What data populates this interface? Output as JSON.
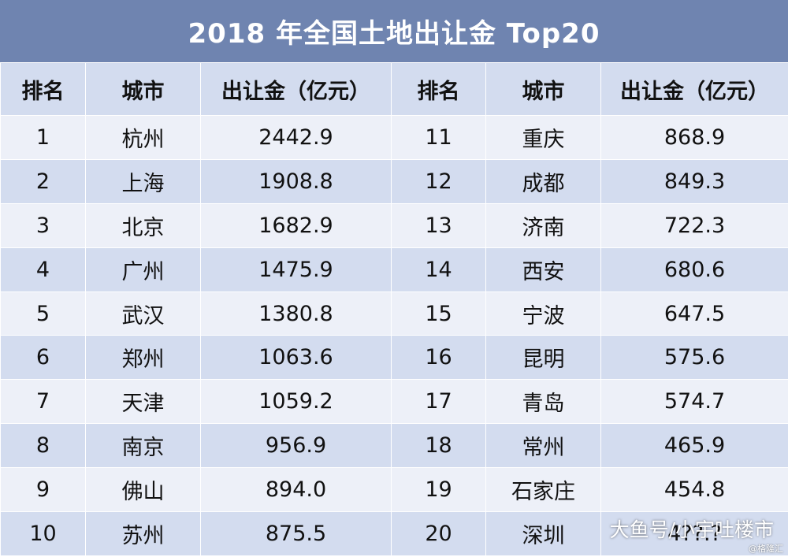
{
  "title": "2018 年全国土地出让金 Top20",
  "headers": [
    "排名",
    "城市",
    "出让金（亿元）",
    "排名",
    "城市",
    "出让金（亿元）"
  ],
  "rows": [
    [
      "1",
      "杭州",
      "2442.9",
      "11",
      "重庆",
      "868.9"
    ],
    [
      "2",
      "上海",
      "1908.8",
      "12",
      "成都",
      "849.3"
    ],
    [
      "3",
      "北京",
      "1682.9",
      "13",
      "济南",
      "722.3"
    ],
    [
      "4",
      "广州",
      "1475.9",
      "14",
      "西安",
      "680.6"
    ],
    [
      "5",
      "武汉",
      "1380.8",
      "15",
      "宁波",
      "647.5"
    ],
    [
      "6",
      "郑州",
      "1063.6",
      "16",
      "昆明",
      "575.6"
    ],
    [
      "7",
      "天津",
      "1059.2",
      "17",
      "青岛",
      "574.7"
    ],
    [
      "8",
      "南京",
      "956.9",
      "18",
      "常州",
      "465.9"
    ],
    [
      "9",
      "佛山",
      "894.0",
      "19",
      "石家庄",
      "454.8"
    ],
    [
      "10",
      "苏州",
      "875.5",
      "20",
      "深圳",
      "4??.?"
    ]
  ],
  "watermark": "大鱼号/小宇吐楼市",
  "watermark_sub": "@格隆汇",
  "colors": {
    "title_bg": "#6f84b0",
    "row_light": "#edf0f8",
    "row_dark": "#d3dcef"
  }
}
